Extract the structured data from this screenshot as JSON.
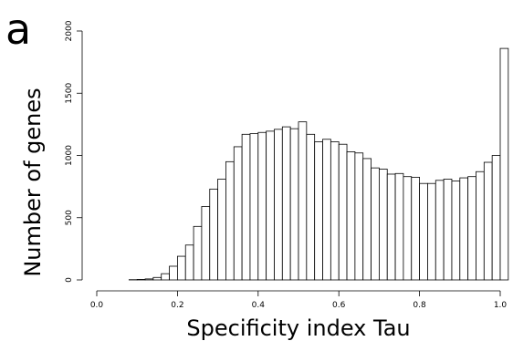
{
  "chart_data": {
    "type": "bar",
    "panel_label": "a",
    "title": "",
    "xlabel": "Specificity index Tau",
    "ylabel": "Number of genes",
    "xlim": [
      0,
      1
    ],
    "ylim": [
      0,
      2000
    ],
    "bin_width": 0.02,
    "bin_start": 0.08,
    "x_ticks": [
      "0.0",
      "0.2",
      "0.4",
      "0.6",
      "0.8",
      "1.0"
    ],
    "y_ticks": [
      "0",
      "500",
      "1000",
      "1500",
      "2000"
    ],
    "values": [
      2,
      4,
      8,
      20,
      50,
      110,
      190,
      280,
      430,
      590,
      730,
      810,
      950,
      1070,
      1170,
      1175,
      1185,
      1195,
      1210,
      1230,
      1215,
      1270,
      1170,
      1110,
      1130,
      1110,
      1090,
      1030,
      1020,
      975,
      900,
      890,
      850,
      855,
      830,
      825,
      775,
      775,
      800,
      810,
      795,
      820,
      830,
      870,
      945,
      1000,
      1860
    ],
    "grid": false,
    "colors": {
      "bar_fill": "#ffffff",
      "bar_stroke": "#000000"
    }
  }
}
